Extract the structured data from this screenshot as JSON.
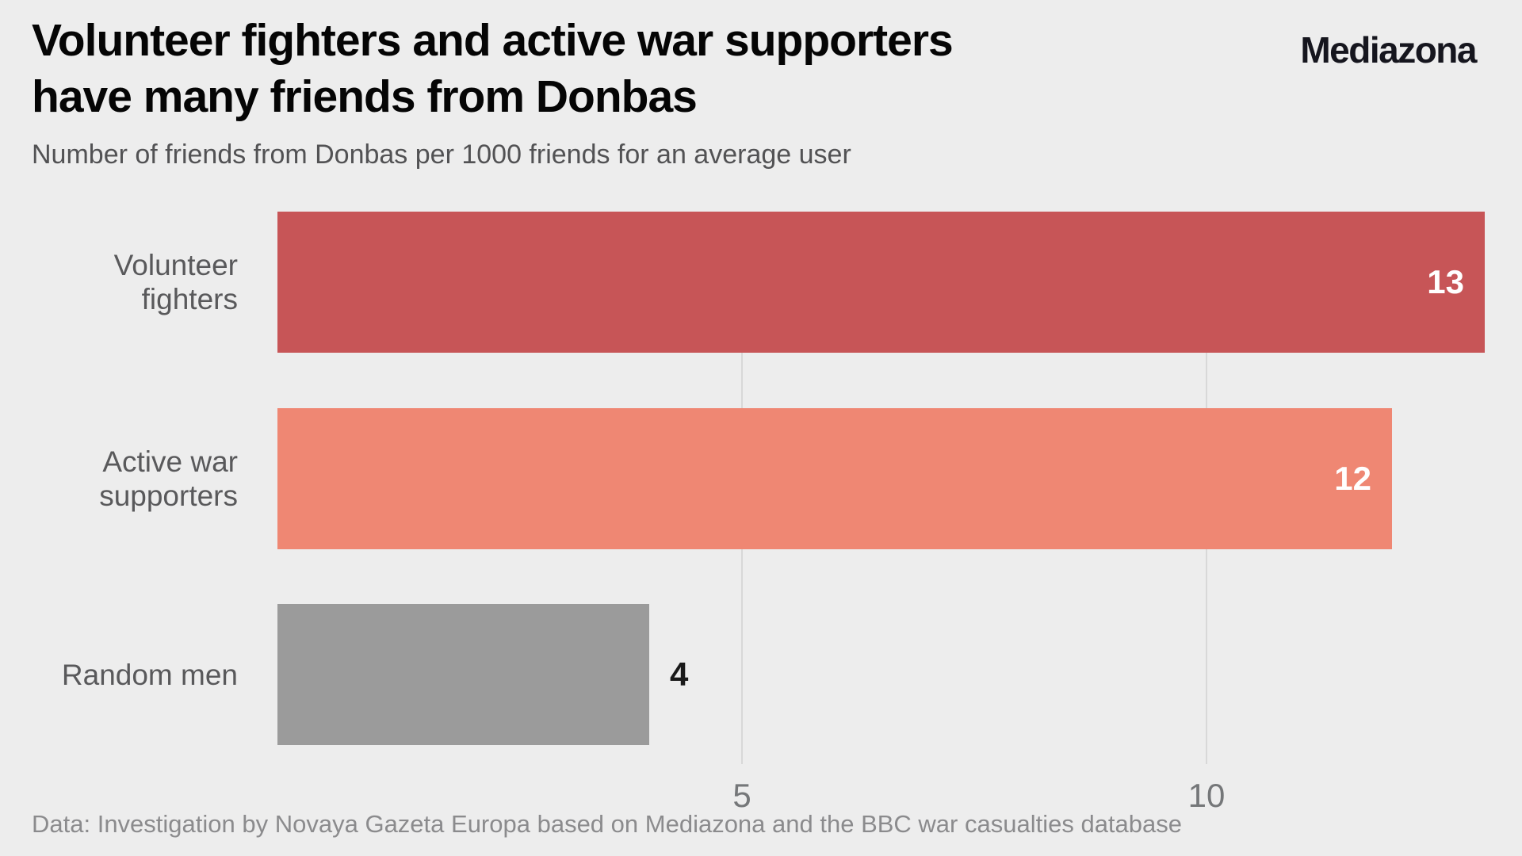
{
  "header": {
    "title_lines": [
      "Volunteer fighters and active war supporters",
      "have many friends from Donbas"
    ],
    "brand": "Mediazona",
    "subtitle": "Number of friends from Donbas per 1000 friends for an average user"
  },
  "chart_data": {
    "type": "bar",
    "orientation": "horizontal",
    "title": "Volunteer fighters and active war supporters have many friends from Donbas",
    "subtitle": "Number of friends from Donbas per 1000 friends for an average user",
    "categories": [
      "Volunteer fighters",
      "Active war supporters",
      "Random men"
    ],
    "values": [
      13,
      12,
      4
    ],
    "xlim": [
      0,
      13.4
    ],
    "x_ticks": [
      5,
      10
    ],
    "tick_labels": [
      "5",
      "10"
    ],
    "grid": "vertical-gridlines-behind-bars",
    "legend": "none",
    "rows": [
      {
        "label_lines": [
          "Volunteer",
          "fighters"
        ],
        "value": 13,
        "value_label": "13",
        "color": "#c75557",
        "value_placement": "inside"
      },
      {
        "label_lines": [
          "Active war",
          "supporters"
        ],
        "value": 12,
        "value_label": "12",
        "color": "#ef8773",
        "value_placement": "inside"
      },
      {
        "label_lines": [
          "Random men"
        ],
        "value": 4,
        "value_label": "4",
        "color": "#9b9b9b",
        "value_placement": "outside"
      }
    ]
  },
  "footer": {
    "source": "Data: Investigation by Novaya Gazeta Europa based on Mediazona and the BBC war casualties database"
  },
  "colors": {
    "background": "#ededed",
    "bar_volunteer_fighters": "#c75557",
    "bar_active_war_supporters": "#ef8773",
    "bar_random_men": "#9b9b9b",
    "gridline": "#d8d8d8",
    "title_text": "#050505",
    "brand_text": "#16161e",
    "subtitle_text": "#525254",
    "category_label_text": "#59595b",
    "tick_text": "#757779",
    "footer_text": "#8b8b8d",
    "value_inside_text": "#ffffff",
    "value_outside_text": "#1a1a1a"
  }
}
